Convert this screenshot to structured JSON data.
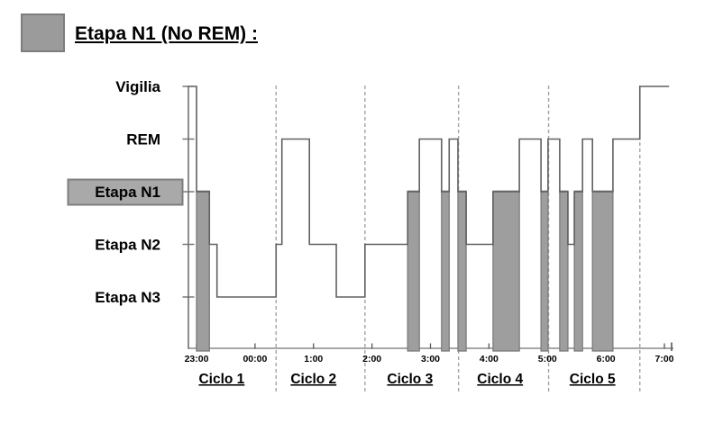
{
  "legend": {
    "label": "Etapa N1 (No REM) :",
    "swatch_color": "#9b9b9b",
    "swatch_border": "#7d7d7d"
  },
  "chart_data": {
    "type": "line",
    "subtype": "hypnogram-step",
    "title": "",
    "xlabel": "",
    "ylabel": "",
    "stage_axis": {
      "labels": [
        "Vigilia",
        "REM",
        "Etapa N1",
        "Etapa N2",
        "Etapa N3"
      ],
      "highlighted_stage": "Etapa N1"
    },
    "time_axis": {
      "tick_labels": [
        "23:00",
        "00:00",
        "1:00",
        "2:00",
        "3:00",
        "4:00",
        "5:00",
        "6:00",
        "7:00"
      ],
      "start_label": "23:00",
      "end_label": "7:00",
      "hours_span": 8
    },
    "series": {
      "name": "sleep-stages",
      "segments": [
        {
          "from": -0.14,
          "to": 0.0,
          "stage": "Vigilia"
        },
        {
          "from": 0.0,
          "to": 0.22,
          "stage": "Etapa N1"
        },
        {
          "from": 0.22,
          "to": 0.35,
          "stage": "Etapa N2"
        },
        {
          "from": 0.35,
          "to": 1.36,
          "stage": "Etapa N3"
        },
        {
          "from": 1.36,
          "to": 1.46,
          "stage": "Etapa N2"
        },
        {
          "from": 1.46,
          "to": 1.93,
          "stage": "REM"
        },
        {
          "from": 1.93,
          "to": 2.39,
          "stage": "Etapa N2"
        },
        {
          "from": 2.39,
          "to": 2.88,
          "stage": "Etapa N3"
        },
        {
          "from": 2.88,
          "to": 3.61,
          "stage": "Etapa N2"
        },
        {
          "from": 3.61,
          "to": 3.81,
          "stage": "Etapa N1"
        },
        {
          "from": 3.81,
          "to": 4.19,
          "stage": "REM"
        },
        {
          "from": 4.19,
          "to": 4.32,
          "stage": "Etapa N1"
        },
        {
          "from": 4.32,
          "to": 4.47,
          "stage": "REM"
        },
        {
          "from": 4.47,
          "to": 4.61,
          "stage": "Etapa N1"
        },
        {
          "from": 4.61,
          "to": 5.07,
          "stage": "Etapa N2"
        },
        {
          "from": 5.07,
          "to": 5.52,
          "stage": "Etapa N1"
        },
        {
          "from": 5.52,
          "to": 5.89,
          "stage": "REM"
        },
        {
          "from": 5.89,
          "to": 6.01,
          "stage": "Etapa N1"
        },
        {
          "from": 6.01,
          "to": 6.21,
          "stage": "REM"
        },
        {
          "from": 6.21,
          "to": 6.35,
          "stage": "Etapa N1"
        },
        {
          "from": 6.35,
          "to": 6.46,
          "stage": "Etapa N2"
        },
        {
          "from": 6.46,
          "to": 6.6,
          "stage": "Etapa N1"
        },
        {
          "from": 6.6,
          "to": 6.77,
          "stage": "REM"
        },
        {
          "from": 6.77,
          "to": 7.12,
          "stage": "Etapa N1"
        },
        {
          "from": 7.12,
          "to": 7.58,
          "stage": "REM"
        },
        {
          "from": 7.58,
          "to": 8.08,
          "stage": "Vigilia"
        }
      ]
    },
    "n1_highlight_bars": [
      {
        "from": 0.0,
        "to": 0.22
      },
      {
        "from": 3.61,
        "to": 3.81
      },
      {
        "from": 4.19,
        "to": 4.32
      },
      {
        "from": 4.47,
        "to": 4.61
      },
      {
        "from": 5.07,
        "to": 5.52
      },
      {
        "from": 5.89,
        "to": 6.01
      },
      {
        "from": 6.21,
        "to": 6.35
      },
      {
        "from": 6.46,
        "to": 6.6
      },
      {
        "from": 6.77,
        "to": 7.12
      }
    ],
    "cycles": [
      {
        "label": "Ciclo 1",
        "end": 1.36,
        "label_center": 0.43
      },
      {
        "label": "Ciclo 2",
        "end": 2.88,
        "label_center": 2.0
      },
      {
        "label": "Ciclo 3",
        "end": 4.48,
        "label_center": 3.65
      },
      {
        "label": "Ciclo 4",
        "end": 6.02,
        "label_center": 5.19
      },
      {
        "label": "Ciclo 5",
        "end": 7.58,
        "label_center": 6.77
      }
    ],
    "layout_hints": {
      "grid": "off",
      "cycle_boundaries": "dashed-vertical",
      "legend_position": "top-left"
    },
    "colors": {
      "bar_fill": "#9e9e9e",
      "bar_border": "#7b7b7b",
      "line": "#606060",
      "x_axis": "#8a8a8a",
      "y_axis": "#6f6f6f",
      "tick": "#555555",
      "dashed": "#a3a3a3",
      "stage_box_fill": "#a9a9a9",
      "stage_box_border": "#7d7d7d",
      "text": "#000000"
    }
  }
}
